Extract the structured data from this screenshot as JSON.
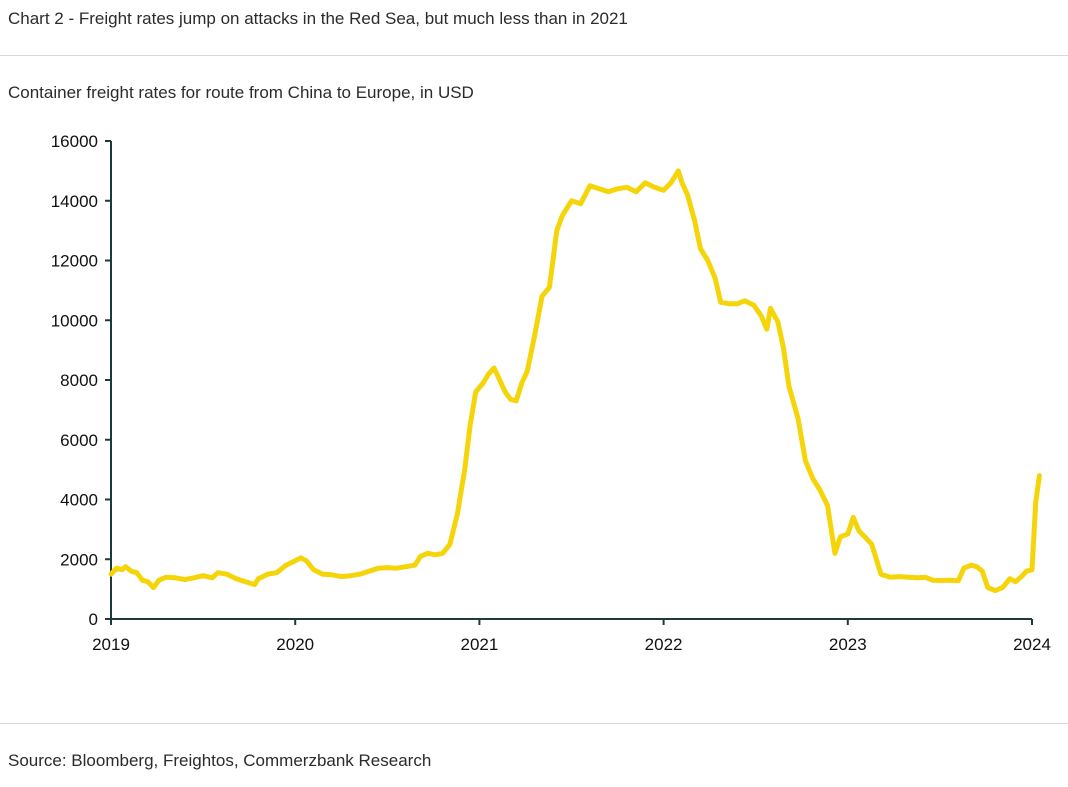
{
  "header": {
    "title": "Chart 2 - Freight rates jump on attacks in the Red Sea, but much less than in 2021"
  },
  "footer": {
    "source": "Source: Bloomberg, Freightos, Commerzbank Research"
  },
  "chart_data": {
    "type": "line",
    "title": "Chart 2 - Freight rates jump on attacks in the Red Sea, but much less than in 2021",
    "subtitle": "Container freight rates for route from China to Europe, in USD",
    "xlabel": "",
    "ylabel": "",
    "xlim": [
      2019,
      2024
    ],
    "ylim": [
      0,
      16000
    ],
    "x_ticks": [
      2019,
      2020,
      2021,
      2022,
      2023,
      2024
    ],
    "y_ticks": [
      0,
      2000,
      4000,
      6000,
      8000,
      10000,
      12000,
      14000,
      16000
    ],
    "grid": false,
    "legend": "none",
    "colors": {
      "line": "#f5d50a",
      "axis": "#1c3a3a"
    },
    "series": [
      {
        "name": "Container freight rate China-Europe (USD)",
        "points": [
          [
            2019.0,
            1500
          ],
          [
            2019.03,
            1700
          ],
          [
            2019.06,
            1650
          ],
          [
            2019.08,
            1750
          ],
          [
            2019.11,
            1600
          ],
          [
            2019.14,
            1550
          ],
          [
            2019.17,
            1300
          ],
          [
            2019.2,
            1250
          ],
          [
            2019.23,
            1050
          ],
          [
            2019.26,
            1300
          ],
          [
            2019.3,
            1400
          ],
          [
            2019.35,
            1380
          ],
          [
            2019.4,
            1320
          ],
          [
            2019.45,
            1380
          ],
          [
            2019.5,
            1450
          ],
          [
            2019.55,
            1380
          ],
          [
            2019.58,
            1550
          ],
          [
            2019.63,
            1500
          ],
          [
            2019.68,
            1350
          ],
          [
            2019.73,
            1250
          ],
          [
            2019.78,
            1150
          ],
          [
            2019.8,
            1350
          ],
          [
            2019.85,
            1500
          ],
          [
            2019.9,
            1550
          ],
          [
            2019.95,
            1800
          ],
          [
            2020.0,
            1950
          ],
          [
            2020.03,
            2050
          ],
          [
            2020.06,
            1950
          ],
          [
            2020.1,
            1650
          ],
          [
            2020.15,
            1500
          ],
          [
            2020.2,
            1480
          ],
          [
            2020.25,
            1420
          ],
          [
            2020.3,
            1450
          ],
          [
            2020.35,
            1500
          ],
          [
            2020.4,
            1600
          ],
          [
            2020.45,
            1700
          ],
          [
            2020.5,
            1720
          ],
          [
            2020.55,
            1700
          ],
          [
            2020.6,
            1750
          ],
          [
            2020.65,
            1800
          ],
          [
            2020.68,
            2100
          ],
          [
            2020.72,
            2200
          ],
          [
            2020.76,
            2150
          ],
          [
            2020.8,
            2200
          ],
          [
            2020.84,
            2500
          ],
          [
            2020.88,
            3500
          ],
          [
            2020.92,
            5000
          ],
          [
            2020.95,
            6500
          ],
          [
            2020.98,
            7600
          ],
          [
            2021.02,
            7900
          ],
          [
            2021.05,
            8200
          ],
          [
            2021.08,
            8400
          ],
          [
            2021.11,
            8000
          ],
          [
            2021.14,
            7600
          ],
          [
            2021.17,
            7350
          ],
          [
            2021.2,
            7300
          ],
          [
            2021.23,
            7900
          ],
          [
            2021.26,
            8300
          ],
          [
            2021.3,
            9500
          ],
          [
            2021.34,
            10800
          ],
          [
            2021.38,
            11100
          ],
          [
            2021.42,
            13000
          ],
          [
            2021.45,
            13500
          ],
          [
            2021.5,
            14000
          ],
          [
            2021.55,
            13900
          ],
          [
            2021.6,
            14500
          ],
          [
            2021.65,
            14400
          ],
          [
            2021.7,
            14300
          ],
          [
            2021.75,
            14400
          ],
          [
            2021.8,
            14450
          ],
          [
            2021.85,
            14300
          ],
          [
            2021.9,
            14600
          ],
          [
            2021.95,
            14450
          ],
          [
            2022.0,
            14350
          ],
          [
            2022.04,
            14600
          ],
          [
            2022.08,
            15000
          ],
          [
            2022.1,
            14600
          ],
          [
            2022.13,
            14200
          ],
          [
            2022.17,
            13300
          ],
          [
            2022.2,
            12400
          ],
          [
            2022.24,
            12000
          ],
          [
            2022.28,
            11400
          ],
          [
            2022.31,
            10600
          ],
          [
            2022.36,
            10550
          ],
          [
            2022.4,
            10550
          ],
          [
            2022.44,
            10650
          ],
          [
            2022.49,
            10500
          ],
          [
            2022.53,
            10150
          ],
          [
            2022.56,
            9700
          ],
          [
            2022.58,
            10400
          ],
          [
            2022.62,
            9950
          ],
          [
            2022.65,
            9100
          ],
          [
            2022.68,
            7800
          ],
          [
            2022.73,
            6700
          ],
          [
            2022.77,
            5300
          ],
          [
            2022.81,
            4700
          ],
          [
            2022.85,
            4300
          ],
          [
            2022.89,
            3800
          ],
          [
            2022.93,
            2200
          ],
          [
            2022.96,
            2750
          ],
          [
            2023.0,
            2850
          ],
          [
            2023.03,
            3400
          ],
          [
            2023.06,
            2950
          ],
          [
            2023.1,
            2700
          ],
          [
            2023.13,
            2500
          ],
          [
            2023.18,
            1500
          ],
          [
            2023.23,
            1400
          ],
          [
            2023.28,
            1420
          ],
          [
            2023.33,
            1400
          ],
          [
            2023.38,
            1380
          ],
          [
            2023.42,
            1400
          ],
          [
            2023.46,
            1300
          ],
          [
            2023.51,
            1290
          ],
          [
            2023.56,
            1300
          ],
          [
            2023.6,
            1280
          ],
          [
            2023.63,
            1700
          ],
          [
            2023.67,
            1800
          ],
          [
            2023.7,
            1750
          ],
          [
            2023.73,
            1600
          ],
          [
            2023.76,
            1050
          ],
          [
            2023.8,
            950
          ],
          [
            2023.84,
            1050
          ],
          [
            2023.88,
            1350
          ],
          [
            2023.91,
            1250
          ],
          [
            2023.94,
            1400
          ],
          [
            2023.97,
            1600
          ],
          [
            2024.0,
            1650
          ],
          [
            2024.02,
            3900
          ],
          [
            2024.04,
            4800
          ]
        ]
      }
    ]
  }
}
